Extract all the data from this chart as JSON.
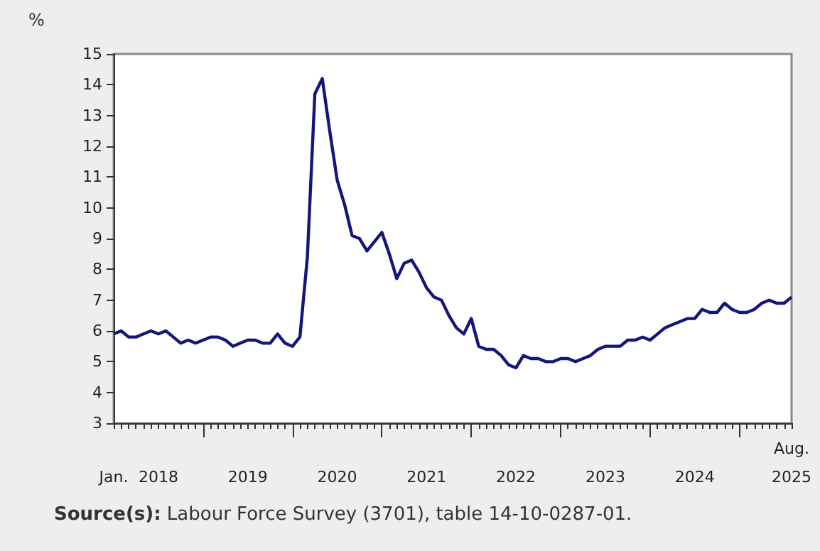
{
  "chart_data": {
    "type": "line",
    "ylabel": "%",
    "x": [
      "2018-01",
      "2018-02",
      "2018-03",
      "2018-04",
      "2018-05",
      "2018-06",
      "2018-07",
      "2018-08",
      "2018-09",
      "2018-10",
      "2018-11",
      "2018-12",
      "2019-01",
      "2019-02",
      "2019-03",
      "2019-04",
      "2019-05",
      "2019-06",
      "2019-07",
      "2019-08",
      "2019-09",
      "2019-10",
      "2019-11",
      "2019-12",
      "2020-01",
      "2020-02",
      "2020-03",
      "2020-04",
      "2020-05",
      "2020-06",
      "2020-07",
      "2020-08",
      "2020-09",
      "2020-10",
      "2020-11",
      "2020-12",
      "2021-01",
      "2021-02",
      "2021-03",
      "2021-04",
      "2021-05",
      "2021-06",
      "2021-07",
      "2021-08",
      "2021-09",
      "2021-10",
      "2021-11",
      "2021-12",
      "2022-01",
      "2022-02",
      "2022-03",
      "2022-04",
      "2022-05",
      "2022-06",
      "2022-07",
      "2022-08",
      "2022-09",
      "2022-10",
      "2022-11",
      "2022-12",
      "2023-01",
      "2023-02",
      "2023-03",
      "2023-04",
      "2023-05",
      "2023-06",
      "2023-07",
      "2023-08",
      "2023-09",
      "2023-10",
      "2023-11",
      "2023-12",
      "2024-01",
      "2024-02",
      "2024-03",
      "2024-04",
      "2024-05",
      "2024-06",
      "2024-07",
      "2024-08",
      "2024-09",
      "2024-10",
      "2024-11",
      "2024-12",
      "2025-01",
      "2025-02",
      "2025-03",
      "2025-04",
      "2025-05",
      "2025-06",
      "2025-07",
      "2025-08"
    ],
    "series": [
      {
        "color": "#15157a",
        "values": [
          5.9,
          6.0,
          5.8,
          5.8,
          5.9,
          6.0,
          5.9,
          6.0,
          5.8,
          5.6,
          5.7,
          5.6,
          5.7,
          5.8,
          5.8,
          5.7,
          5.5,
          5.6,
          5.7,
          5.7,
          5.6,
          5.6,
          5.9,
          5.6,
          5.5,
          5.8,
          8.4,
          13.7,
          14.2,
          12.5,
          10.9,
          10.1,
          9.1,
          9.0,
          8.6,
          8.9,
          9.2,
          8.5,
          7.7,
          8.2,
          8.3,
          7.9,
          7.4,
          7.1,
          7.0,
          6.5,
          6.1,
          5.9,
          6.4,
          5.5,
          5.4,
          5.4,
          5.2,
          4.9,
          4.8,
          5.2,
          5.1,
          5.1,
          5.0,
          5.0,
          5.1,
          5.1,
          5.0,
          5.1,
          5.2,
          5.4,
          5.5,
          5.5,
          5.5,
          5.7,
          5.7,
          5.8,
          5.7,
          5.9,
          6.1,
          6.2,
          6.3,
          6.4,
          6.4,
          6.7,
          6.6,
          6.6,
          6.9,
          6.7,
          6.6,
          6.6,
          6.7,
          6.9,
          7.0,
          6.9,
          6.9,
          7.1
        ]
      }
    ],
    "xlim": [
      "2018-01",
      "2025-08"
    ],
    "xticks": [
      {
        "value": "2018-01",
        "label": "Jan."
      },
      {
        "value": "2018-07",
        "label": "2018"
      },
      {
        "value": "2019-01",
        "label": null
      },
      {
        "value": "2019-07",
        "label": "2019"
      },
      {
        "value": "2020-01",
        "label": null
      },
      {
        "value": "2020-07",
        "label": "2020"
      },
      {
        "value": "2021-01",
        "label": null
      },
      {
        "value": "2021-07",
        "label": "2021"
      },
      {
        "value": "2022-01",
        "label": null
      },
      {
        "value": "2022-07",
        "label": "2022"
      },
      {
        "value": "2023-01",
        "label": null
      },
      {
        "value": "2023-07",
        "label": "2023"
      },
      {
        "value": "2024-01",
        "label": null
      },
      {
        "value": "2024-07",
        "label": "2024"
      },
      {
        "value": "2025-01",
        "label": null
      },
      {
        "value": "2025-08",
        "label": "Aug.\n2025"
      }
    ],
    "ylim": [
      3,
      15
    ],
    "yticks": [
      3,
      4,
      5,
      6,
      7,
      8,
      9,
      10,
      11,
      12,
      13,
      14,
      15
    ],
    "grid": false,
    "marker": "none",
    "line_style": "solid",
    "annotations": [
      "Source(s): Labour Force Survey (3701), table 14-10-0287-01."
    ]
  }
}
